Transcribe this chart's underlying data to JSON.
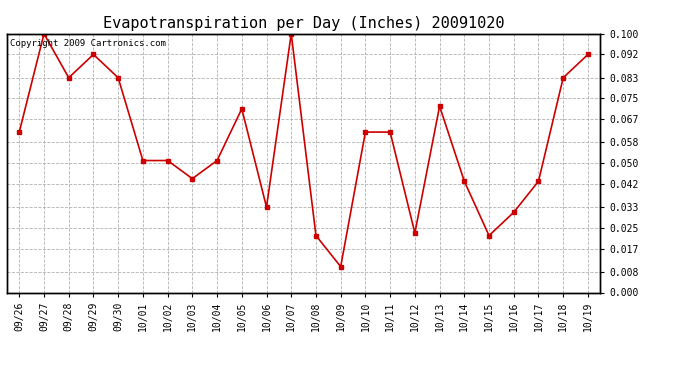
{
  "title": "Evapotranspiration per Day (Inches) 20091020",
  "copyright": "Copyright 2009 Cartronics.com",
  "dates": [
    "09/26",
    "09/27",
    "09/28",
    "09/29",
    "09/30",
    "10/01",
    "10/02",
    "10/03",
    "10/04",
    "10/05",
    "10/06",
    "10/07",
    "10/08",
    "10/09",
    "10/10",
    "10/11",
    "10/12",
    "10/13",
    "10/14",
    "10/15",
    "10/16",
    "10/17",
    "10/18",
    "10/19"
  ],
  "values": [
    0.062,
    0.1,
    0.083,
    0.092,
    0.083,
    0.051,
    0.051,
    0.044,
    0.051,
    0.071,
    0.033,
    0.1,
    0.022,
    0.01,
    0.062,
    0.062,
    0.023,
    0.072,
    0.043,
    0.022,
    0.031,
    0.043,
    0.083,
    0.092
  ],
  "line_color": "#cc0000",
  "marker": "s",
  "marker_size": 2.5,
  "ylim": [
    0.0,
    0.1
  ],
  "yticks": [
    0.0,
    0.008,
    0.017,
    0.025,
    0.033,
    0.042,
    0.05,
    0.058,
    0.067,
    0.075,
    0.083,
    0.092,
    0.1
  ],
  "background_color": "#ffffff",
  "grid_color": "#aaaaaa",
  "title_fontsize": 11,
  "tick_fontsize": 7,
  "copyright_fontsize": 6.5
}
